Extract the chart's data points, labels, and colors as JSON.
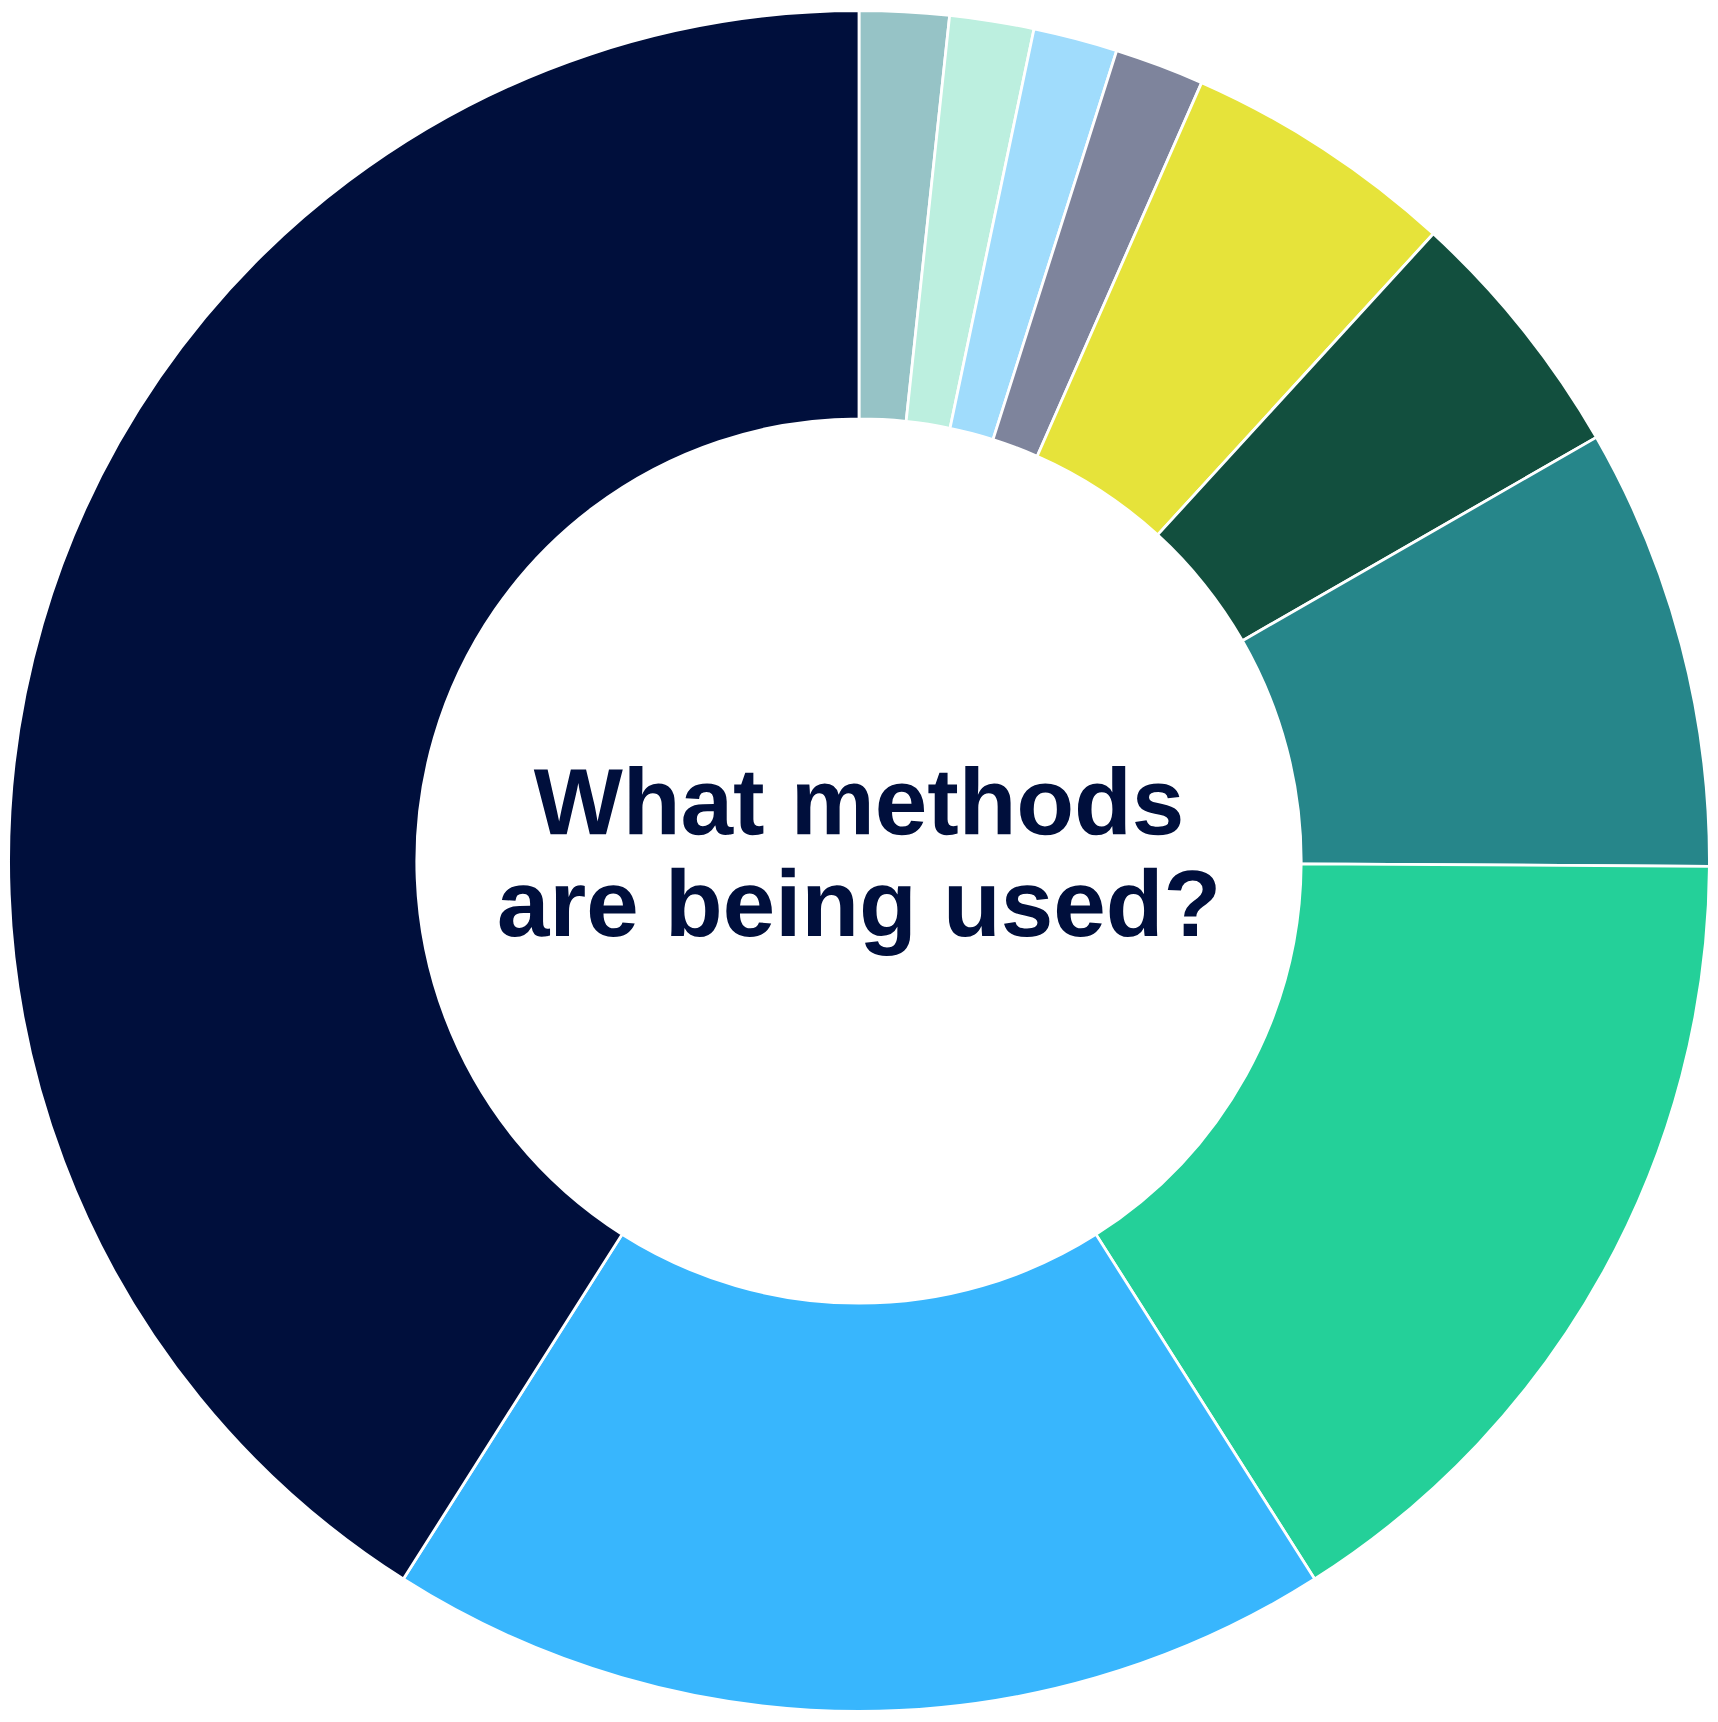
{
  "chart_data": {
    "type": "donut",
    "title": "What methods\nare being used?",
    "categories": [
      null,
      null,
      null,
      null,
      null,
      null,
      null,
      null,
      null,
      null
    ],
    "values": [
      1.7,
      1.6,
      1.6,
      1.7,
      5.2,
      4.9,
      8.4,
      15.9,
      18.0,
      41.0
    ],
    "colors": [
      "#96c3c6",
      "#bcefdf",
      "#a0dcfc",
      "#7e849c",
      "#e6e33a",
      "#124f3e",
      "#26868a",
      "#24d099",
      "#38b6fd",
      "#000f3c"
    ]
  }
}
